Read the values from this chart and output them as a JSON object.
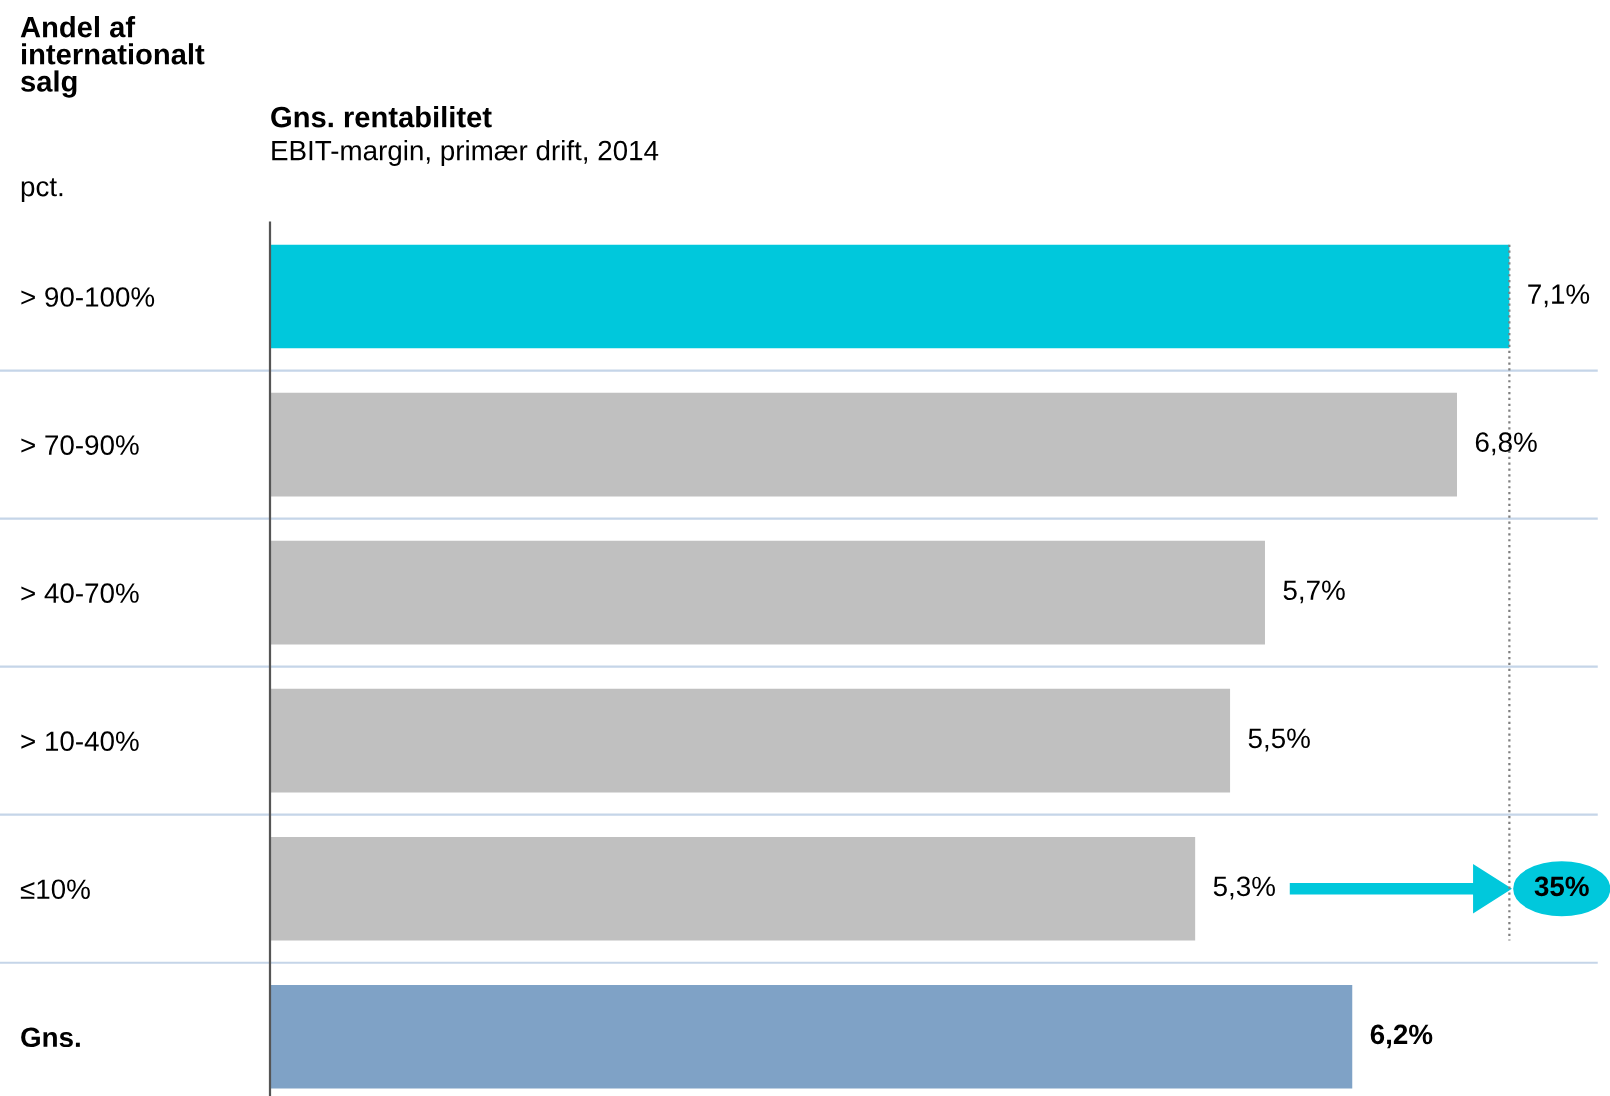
{
  "chart_data": {
    "type": "bar",
    "orientation": "horizontal",
    "title": "Gns. rentabilitet",
    "subtitle": "EBIT-margin, primær drift, 2014",
    "ylabel": "Andel af internationalt salg",
    "categories": [
      "> 90-100%",
      "> 70-90%",
      "> 40-70%",
      "> 10-40%",
      "≤10%",
      "Gns."
    ],
    "values": [
      7.1,
      6.8,
      5.7,
      5.5,
      5.3,
      6.2
    ],
    "colors": [
      "#00c8dc",
      "#c0c0c0",
      "#c0c0c0",
      "#c0c0c0",
      "#c0c0c0",
      "#7fa2c6"
    ],
    "value_labels": [
      "7,1%",
      "6,8%",
      "5,7%",
      "5,5%",
      "5,3%",
      "6,2%"
    ],
    "xlim": [
      0,
      7.6
    ],
    "tick_labels": "y",
    "grid": "y",
    "ref_lines": [
      {
        "axis": "x",
        "value": 7.1,
        "label": null,
        "color": "#808080",
        "line_style": "dotted"
      }
    ],
    "annotations": [
      "pct.",
      "35%"
    ]
  }
}
